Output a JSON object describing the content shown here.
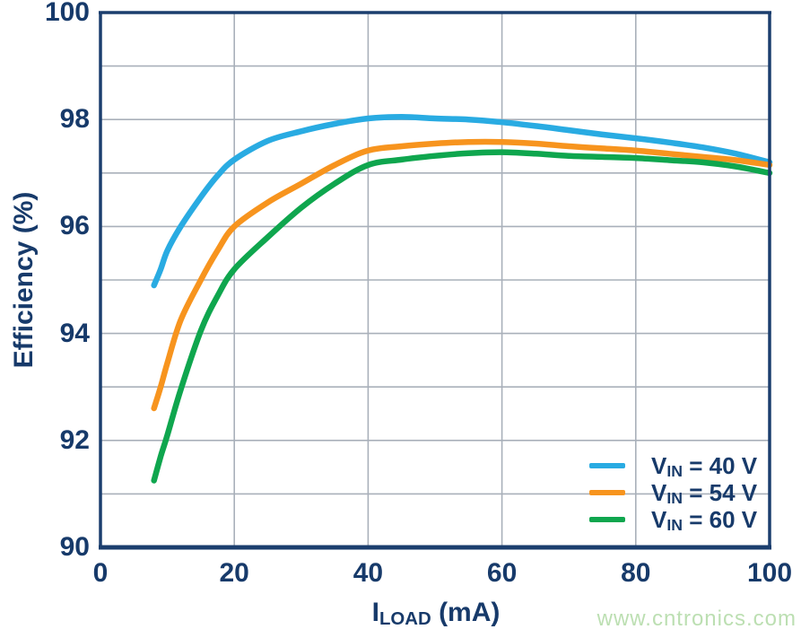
{
  "watermark": {
    "text": "www.cntronics.com",
    "color": "#bcdfb2"
  },
  "chart_data": {
    "type": "line",
    "title": "",
    "xlabel_parts": {
      "base": "I",
      "sub": "LOAD",
      "rest": " (mA)"
    },
    "ylabel": "Efficiency (%)",
    "xlim": [
      0,
      100
    ],
    "ylim": [
      90,
      100
    ],
    "x_ticks": [
      0,
      20,
      40,
      60,
      80,
      100
    ],
    "y_ticks": [
      90,
      92,
      94,
      96,
      98,
      100
    ],
    "grid": {
      "on": true,
      "x_step": 20,
      "y_step": 1,
      "color": "#a9b0ba"
    },
    "axis_color": "#1b3e6e",
    "legend": {
      "position": "inside-bottom-right"
    },
    "series": [
      {
        "id": "vin-40",
        "label": "VIN = 40 V",
        "label_parts": {
          "base": "V",
          "sub": "IN",
          "rest": " = 40 V"
        },
        "color": "#29abe2",
        "points": [
          [
            8,
            94.9
          ],
          [
            9,
            95.2
          ],
          [
            10,
            95.55
          ],
          [
            12,
            96.0
          ],
          [
            15,
            96.55
          ],
          [
            17.5,
            96.95
          ],
          [
            20,
            97.25
          ],
          [
            25,
            97.6
          ],
          [
            30,
            97.78
          ],
          [
            35,
            97.92
          ],
          [
            40,
            98.02
          ],
          [
            45,
            98.05
          ],
          [
            50,
            98.02
          ],
          [
            55,
            98.0
          ],
          [
            60,
            97.95
          ],
          [
            65,
            97.88
          ],
          [
            70,
            97.8
          ],
          [
            75,
            97.72
          ],
          [
            80,
            97.65
          ],
          [
            85,
            97.57
          ],
          [
            90,
            97.48
          ],
          [
            95,
            97.36
          ],
          [
            100,
            97.2
          ]
        ]
      },
      {
        "id": "vin-54",
        "label": "VIN = 54 V",
        "label_parts": {
          "base": "V",
          "sub": "IN",
          "rest": " = 54 V"
        },
        "color": "#f7941e",
        "points": [
          [
            8,
            92.6
          ],
          [
            9,
            93.0
          ],
          [
            10,
            93.45
          ],
          [
            12,
            94.25
          ],
          [
            15,
            95.0
          ],
          [
            17.5,
            95.55
          ],
          [
            20,
            96.0
          ],
          [
            25,
            96.45
          ],
          [
            30,
            96.8
          ],
          [
            35,
            97.15
          ],
          [
            40,
            97.42
          ],
          [
            45,
            97.5
          ],
          [
            50,
            97.55
          ],
          [
            55,
            97.58
          ],
          [
            60,
            97.58
          ],
          [
            65,
            97.55
          ],
          [
            70,
            97.5
          ],
          [
            75,
            97.46
          ],
          [
            80,
            97.42
          ],
          [
            85,
            97.36
          ],
          [
            90,
            97.3
          ],
          [
            95,
            97.24
          ],
          [
            100,
            97.15
          ]
        ]
      },
      {
        "id": "vin-60",
        "label": "VIN = 60 V",
        "label_parts": {
          "base": "V",
          "sub": "IN",
          "rest": " = 60 V"
        },
        "color": "#0fa64e",
        "points": [
          [
            8,
            91.25
          ],
          [
            9,
            91.7
          ],
          [
            10,
            92.1
          ],
          [
            12,
            92.95
          ],
          [
            15,
            94.05
          ],
          [
            17.5,
            94.7
          ],
          [
            20,
            95.2
          ],
          [
            25,
            95.8
          ],
          [
            30,
            96.35
          ],
          [
            35,
            96.8
          ],
          [
            40,
            97.15
          ],
          [
            45,
            97.25
          ],
          [
            50,
            97.32
          ],
          [
            55,
            97.37
          ],
          [
            60,
            97.39
          ],
          [
            65,
            97.36
          ],
          [
            70,
            97.32
          ],
          [
            75,
            97.3
          ],
          [
            80,
            97.28
          ],
          [
            85,
            97.24
          ],
          [
            90,
            97.2
          ],
          [
            95,
            97.12
          ],
          [
            100,
            97.0
          ]
        ]
      }
    ]
  }
}
